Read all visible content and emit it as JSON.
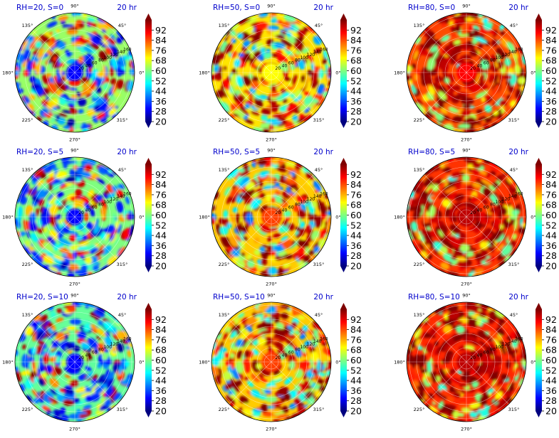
{
  "figure": {
    "time_label": "20 hr"
  },
  "shared": {
    "angle_labels": [
      "90°",
      "45°",
      "0°",
      "315°",
      "270°",
      "225°",
      "180°",
      "135°"
    ],
    "radial_labels": [
      "20",
      "40",
      "60",
      "80",
      "100",
      "120",
      "140",
      "160"
    ],
    "colorbar_ticks": [
      "92",
      "84",
      "76",
      "68",
      "60",
      "52",
      "44",
      "36",
      "28",
      "20"
    ],
    "colors": {
      "title": "#0000cc",
      "jet": [
        "#00007f",
        "#0000ff",
        "#007fff",
        "#00ffff",
        "#7fff7f",
        "#ffff00",
        "#ff7f00",
        "#ff0000",
        "#7f0000"
      ]
    }
  },
  "chart_data": [
    {
      "type": "heatmap",
      "projection": "polar",
      "title": "RH=20, S=0",
      "rh": 20,
      "s": 0,
      "colorbar_range": [
        20,
        100
      ],
      "radial_ticks": [
        20,
        40,
        60,
        80,
        100,
        120,
        140,
        160
      ],
      "angular_ticks_deg": [
        0,
        45,
        90,
        135,
        180,
        225,
        270,
        315
      ],
      "approx_mean": 62,
      "center_value": 30
    },
    {
      "type": "heatmap",
      "projection": "polar",
      "title": "RH=50, S=0",
      "rh": 50,
      "s": 0,
      "colorbar_range": [
        20,
        100
      ],
      "radial_ticks": [
        20,
        40,
        60,
        80,
        100,
        120,
        140,
        160
      ],
      "angular_ticks_deg": [
        0,
        45,
        90,
        135,
        180,
        225,
        270,
        315
      ],
      "approx_mean": 72,
      "center_value": 70
    },
    {
      "type": "heatmap",
      "projection": "polar",
      "title": "RH=80, S=0",
      "rh": 80,
      "s": 0,
      "colorbar_range": [
        20,
        100
      ],
      "radial_ticks": [
        20,
        40,
        60,
        80,
        100,
        120,
        140,
        160
      ],
      "angular_ticks_deg": [
        0,
        45,
        90,
        135,
        180,
        225,
        270,
        315
      ],
      "approx_mean": 84,
      "center_value": 90
    },
    {
      "type": "heatmap",
      "projection": "polar",
      "title": "RH=20, S=5",
      "rh": 20,
      "s": 5,
      "colorbar_range": [
        20,
        100
      ],
      "radial_ticks": [
        20,
        40,
        60,
        80,
        100,
        120,
        140,
        160
      ],
      "angular_ticks_deg": [
        0,
        45,
        90,
        135,
        180,
        225,
        270,
        315
      ],
      "approx_mean": 60,
      "center_value": 30
    },
    {
      "type": "heatmap",
      "projection": "polar",
      "title": "RH=50, S=5",
      "rh": 50,
      "s": 5,
      "colorbar_range": [
        20,
        100
      ],
      "radial_ticks": [
        20,
        40,
        60,
        80,
        100,
        120,
        140,
        160
      ],
      "angular_ticks_deg": [
        0,
        45,
        90,
        135,
        180,
        225,
        270,
        315
      ],
      "approx_mean": 74,
      "center_value": 85
    },
    {
      "type": "heatmap",
      "projection": "polar",
      "title": "RH=80, S=5",
      "rh": 80,
      "s": 5,
      "colorbar_range": [
        20,
        100
      ],
      "radial_ticks": [
        20,
        40,
        60,
        80,
        100,
        120,
        140,
        160
      ],
      "angular_ticks_deg": [
        0,
        45,
        90,
        135,
        180,
        225,
        270,
        315
      ],
      "approx_mean": 86,
      "center_value": 95
    },
    {
      "type": "heatmap",
      "projection": "polar",
      "title": "RH=20, S=10",
      "rh": 20,
      "s": 10,
      "colorbar_range": [
        20,
        100
      ],
      "radial_ticks": [
        20,
        40,
        60,
        80,
        100,
        120,
        140,
        160
      ],
      "angular_ticks_deg": [
        0,
        45,
        90,
        135,
        180,
        225,
        270,
        315
      ],
      "approx_mean": 58,
      "center_value": 30
    },
    {
      "type": "heatmap",
      "projection": "polar",
      "title": "RH=50, S=10",
      "rh": 50,
      "s": 10,
      "colorbar_range": [
        20,
        100
      ],
      "radial_ticks": [
        20,
        40,
        60,
        80,
        100,
        120,
        140,
        160
      ],
      "angular_ticks_deg": [
        0,
        45,
        90,
        135,
        180,
        225,
        270,
        315
      ],
      "approx_mean": 74,
      "center_value": 85
    },
    {
      "type": "heatmap",
      "projection": "polar",
      "title": "RH=80, S=10",
      "rh": 80,
      "s": 10,
      "colorbar_range": [
        20,
        100
      ],
      "radial_ticks": [
        20,
        40,
        60,
        80,
        100,
        120,
        140,
        160
      ],
      "angular_ticks_deg": [
        0,
        45,
        90,
        135,
        180,
        225,
        270,
        315
      ],
      "approx_mean": 87,
      "center_value": 95
    }
  ]
}
